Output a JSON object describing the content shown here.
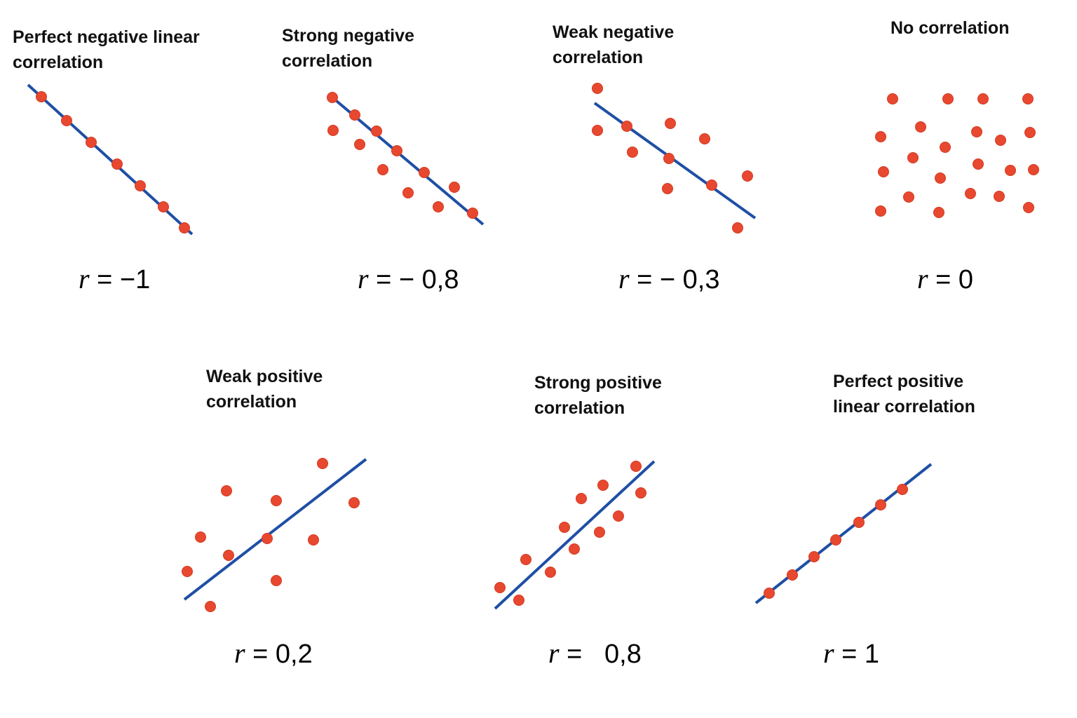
{
  "figure": {
    "dot_color": "#e8482f",
    "line_color": "#1f4fa5",
    "text_color": "#111111"
  },
  "panels": [
    {
      "id": "perfect-negative",
      "title_line1": "Perfect negative linear",
      "title_line2": "correlation",
      "r_symbol": "r",
      "r_equals": "= −1",
      "trend": "negative",
      "points": [
        [
          59,
          138
        ],
        [
          95,
          172
        ],
        [
          130,
          203
        ],
        [
          167,
          234
        ],
        [
          200,
          265
        ],
        [
          233,
          295
        ],
        [
          263,
          325
        ]
      ]
    },
    {
      "id": "strong-negative",
      "title_line1": "Strong negative",
      "title_line2": "correlation",
      "r_symbol": "r",
      "r_equals": "= − 0,8",
      "trend": "negative",
      "points": [
        [
          474,
          139
        ],
        [
          506,
          164
        ],
        [
          537,
          187
        ],
        [
          566,
          215
        ],
        [
          605,
          246
        ],
        [
          674,
          304
        ],
        [
          475,
          186
        ],
        [
          513,
          206
        ],
        [
          546,
          242
        ],
        [
          582,
          275
        ],
        [
          625,
          295
        ],
        [
          648,
          267
        ]
      ]
    },
    {
      "id": "weak-negative",
      "title_line1": "Weak negative",
      "title_line2": "correlation",
      "r_symbol": "r",
      "r_equals": "= − 0,3",
      "trend": "negative",
      "points": [
        [
          852,
          126
        ],
        [
          852,
          186
        ],
        [
          894,
          180
        ],
        [
          902,
          217
        ],
        [
          956,
          176
        ],
        [
          954,
          226
        ],
        [
          952,
          269
        ],
        [
          1005,
          198
        ],
        [
          1015,
          264
        ],
        [
          1066,
          251
        ],
        [
          1052,
          325
        ]
      ]
    },
    {
      "id": "no-correlation",
      "title_line1": "No correlation",
      "title_line2": "",
      "r_symbol": "r",
      "r_equals": "= 0",
      "trend": "none",
      "points": [
        [
          1273,
          141
        ],
        [
          1352,
          141
        ],
        [
          1402,
          141
        ],
        [
          1466,
          141
        ],
        [
          1256,
          195
        ],
        [
          1313,
          181
        ],
        [
          1348,
          210
        ],
        [
          1393,
          188
        ],
        [
          1427,
          200
        ],
        [
          1469,
          189
        ],
        [
          1260,
          245
        ],
        [
          1302,
          225
        ],
        [
          1341,
          254
        ],
        [
          1395,
          234
        ],
        [
          1441,
          243
        ],
        [
          1474,
          242
        ],
        [
          1256,
          301
        ],
        [
          1296,
          281
        ],
        [
          1339,
          303
        ],
        [
          1384,
          276
        ],
        [
          1425,
          280
        ],
        [
          1467,
          296
        ]
      ]
    },
    {
      "id": "weak-positive",
      "title_line1": "Weak positive",
      "title_line2": "correlation",
      "r_symbol": "r",
      "r_equals": "= 0,2",
      "trend": "positive",
      "points": [
        [
          267,
          815
        ],
        [
          286,
          766
        ],
        [
          300,
          865
        ],
        [
          323,
          700
        ],
        [
          326,
          792
        ],
        [
          381,
          768
        ],
        [
          394,
          714
        ],
        [
          394,
          828
        ],
        [
          447,
          770
        ],
        [
          460,
          661
        ],
        [
          505,
          717
        ]
      ]
    },
    {
      "id": "strong-positive",
      "title_line1": "Strong positive",
      "title_line2": "correlation",
      "r_symbol": "r",
      "r_equals": "=   0,8",
      "trend": "positive",
      "points": [
        [
          713,
          838
        ],
        [
          740,
          856
        ],
        [
          750,
          798
        ],
        [
          785,
          816
        ],
        [
          805,
          752
        ],
        [
          819,
          783
        ],
        [
          829,
          711
        ],
        [
          855,
          759
        ],
        [
          860,
          692
        ],
        [
          882,
          736
        ],
        [
          907,
          665
        ],
        [
          914,
          703
        ]
      ]
    },
    {
      "id": "perfect-positive",
      "title_line1": "Perfect positive",
      "title_line2": "linear correlation",
      "r_symbol": "r",
      "r_equals": "= 1",
      "trend": "positive",
      "points": [
        [
          1097,
          846
        ],
        [
          1130,
          820
        ],
        [
          1161,
          794
        ],
        [
          1192,
          770
        ],
        [
          1225,
          745
        ],
        [
          1256,
          720
        ],
        [
          1287,
          698
        ]
      ]
    }
  ]
}
